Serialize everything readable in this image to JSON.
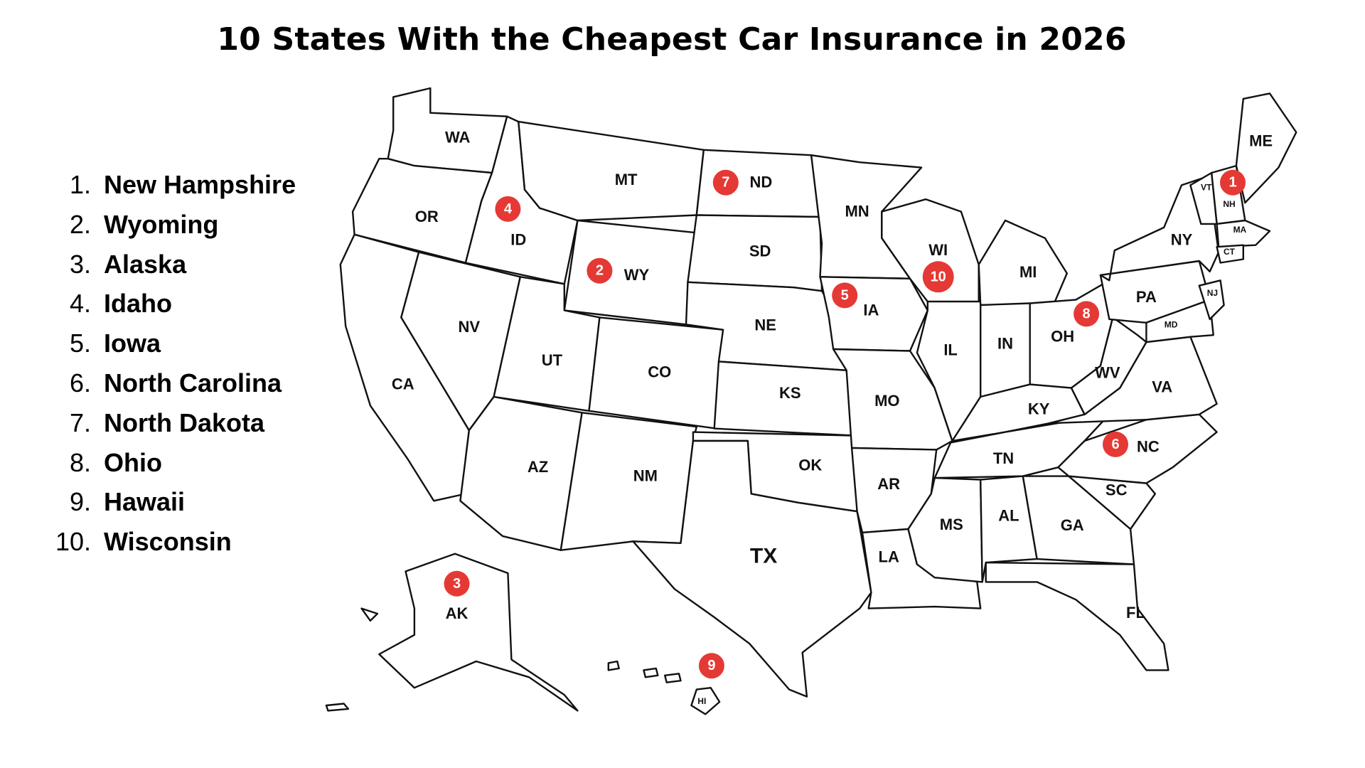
{
  "title": "10 States With the Cheapest Car Insurance in 2026",
  "ranking": [
    {
      "rank": "1.",
      "state": "New Hampshire"
    },
    {
      "rank": "2.",
      "state": "Wyoming"
    },
    {
      "rank": "3.",
      "state": "Alaska"
    },
    {
      "rank": "4.",
      "state": "Idaho"
    },
    {
      "rank": "5.",
      "state": "Iowa"
    },
    {
      "rank": "6.",
      "state": "North Carolina"
    },
    {
      "rank": "7.",
      "state": "North Dakota"
    },
    {
      "rank": "8.",
      "state": "Ohio"
    },
    {
      "rank": "9.",
      "state": "Hawaii"
    },
    {
      "rank": "10.",
      "state": "Wisconsin"
    }
  ],
  "map": {
    "state_labels": {
      "wa": "WA",
      "or": "OR",
      "ca": "CA",
      "id": "ID",
      "nv": "NV",
      "mt": "MT",
      "wy": "WY",
      "ut": "UT",
      "az": "AZ",
      "co": "CO",
      "nm": "NM",
      "nd": "ND",
      "sd": "SD",
      "ne": "NE",
      "ks": "KS",
      "ok": "OK",
      "tx": "TX",
      "mn": "MN",
      "ia": "IA",
      "mo": "MO",
      "ar": "AR",
      "la": "LA",
      "wi": "WI",
      "il": "IL",
      "mi": "MI",
      "in": "IN",
      "oh": "OH",
      "ky": "KY",
      "tn": "TN",
      "ms": "MS",
      "al": "AL",
      "ga": "GA",
      "fl": "FL",
      "sc": "SC",
      "nc": "NC",
      "va": "VA",
      "wv": "WV",
      "pa": "PA",
      "ny": "NY",
      "md": "MD",
      "nj": "NJ",
      "vt": "VT",
      "nh": "NH",
      "ma": "MA",
      "ct": "CT",
      "me": "ME",
      "ak": "AK",
      "hi": "HI"
    },
    "badge_color": "#e53935",
    "badges": {
      "nh": "1",
      "wy": "2",
      "ak": "3",
      "id": "4",
      "ia": "5",
      "nc": "6",
      "nd": "7",
      "oh": "8",
      "hi": "9",
      "wi": "10"
    }
  }
}
